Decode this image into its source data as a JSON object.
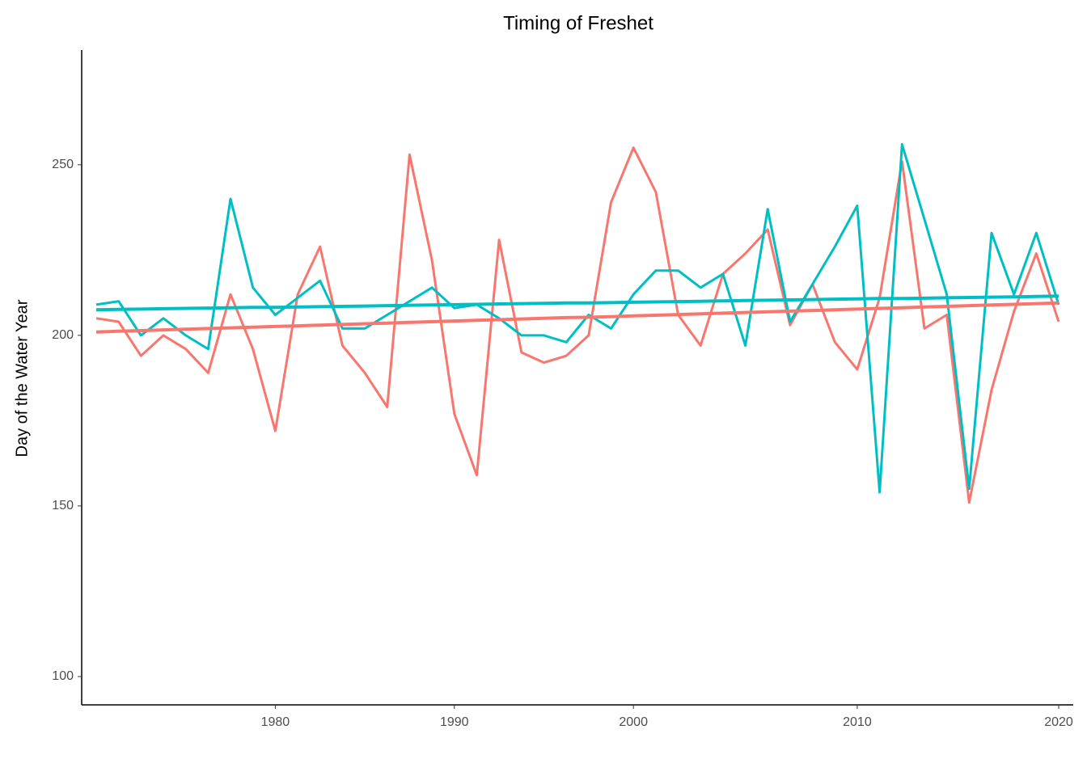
{
  "chart_data": {
    "type": "line",
    "title": "Timing of Freshet",
    "y_label": "Day of the Water Year",
    "categories": [
      null,
      null,
      null,
      null,
      null,
      null,
      null,
      null,
      "1980",
      null,
      null,
      null,
      null,
      null,
      null,
      null,
      "1990",
      null,
      null,
      null,
      null,
      null,
      null,
      null,
      "2000",
      null,
      null,
      null,
      null,
      null,
      null,
      null,
      null,
      null,
      "2010",
      null,
      null,
      null,
      null,
      null,
      null,
      null,
      null,
      "2020"
    ],
    "ylim": [
      91.7,
      283.6
    ],
    "yticks": [
      100,
      150,
      200,
      250
    ],
    "grid": false,
    "series": [
      {
        "color": "#f8766d",
        "line_width": 3,
        "values": [
          205,
          204,
          194,
          200,
          196,
          189,
          212,
          196,
          172,
          212,
          226,
          197,
          189,
          179,
          253,
          222,
          177,
          159,
          228,
          195,
          192,
          194,
          200,
          239,
          255,
          242,
          206,
          197,
          218,
          224,
          231,
          203,
          215,
          198,
          190,
          211,
          251,
          202,
          206,
          151,
          184,
          207,
          224,
          204
        ]
      },
      {
        "color": "#00bfc4",
        "line_width": 3,
        "values": [
          209,
          210,
          200,
          205,
          200,
          196,
          240,
          214,
          206,
          211,
          216,
          202,
          202,
          206,
          210,
          214,
          208,
          209,
          205,
          200,
          200,
          198,
          206,
          202,
          212,
          219,
          219,
          214,
          218,
          197,
          237,
          204,
          215,
          226,
          238,
          154,
          256,
          234,
          212,
          155,
          230,
          212,
          230,
          209
        ]
      },
      {
        "color": "#f8766d",
        "line_width": 4,
        "values": [
          201.0,
          201.2,
          201.4,
          201.6,
          201.8,
          202.0,
          202.2,
          202.4,
          202.6,
          202.8,
          203.0,
          203.2,
          203.4,
          203.6,
          203.8,
          204.0,
          204.2,
          204.4,
          204.6,
          204.8,
          205.0,
          205.2,
          205.3,
          205.5,
          205.7,
          205.9,
          206.1,
          206.3,
          206.5,
          206.7,
          206.9,
          207.1,
          207.3,
          207.5,
          207.7,
          207.9,
          208.1,
          208.3,
          208.5,
          208.7,
          208.9,
          209.1,
          209.3,
          209.5
        ]
      },
      {
        "color": "#00bfc4",
        "line_width": 4,
        "values": [
          207.5,
          207.6,
          207.7,
          207.8,
          207.9,
          208.0,
          208.1,
          208.2,
          208.2,
          208.3,
          208.4,
          208.5,
          208.6,
          208.7,
          208.8,
          208.9,
          209.0,
          209.1,
          209.2,
          209.3,
          209.4,
          209.5,
          209.5,
          209.6,
          209.7,
          209.8,
          209.9,
          210.0,
          210.1,
          210.2,
          210.3,
          210.4,
          210.5,
          210.6,
          210.7,
          210.8,
          210.8,
          210.9,
          211.0,
          211.1,
          211.2,
          211.3,
          211.4,
          211.5
        ]
      }
    ]
  }
}
